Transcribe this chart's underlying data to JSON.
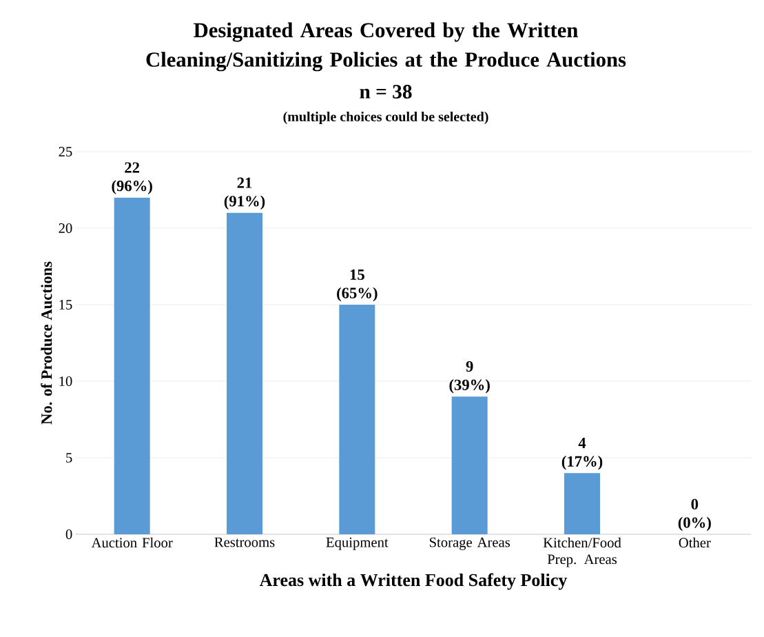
{
  "chart_data": {
    "type": "bar",
    "title": "Designated Areas Covered by the Written Cleaning/Sanitizing Policies at the Produce Auctions",
    "subtitle": "n = 38",
    "annotations": [
      "(multiple choices could be selected)"
    ],
    "xlabel": "Areas with a Written Food Safety Policy",
    "ylabel": "No. of Produce Auctions",
    "categories": [
      "Auction Floor",
      "Restrooms",
      "Equipment",
      "Storage Areas",
      "Kitchen/Food Prep. Areas",
      "Other"
    ],
    "values": [
      22,
      21,
      15,
      9,
      4,
      0
    ],
    "value_labels": [
      "22 (96%)",
      "21 (91%)",
      "15 (65%)",
      "9 (39%)",
      "4 (17%)",
      "0 (0%)"
    ],
    "color": "#5b9bd5",
    "ylim": [
      0,
      25
    ],
    "yticks": [
      0,
      5,
      10,
      15,
      20,
      25
    ],
    "grid": "y"
  }
}
